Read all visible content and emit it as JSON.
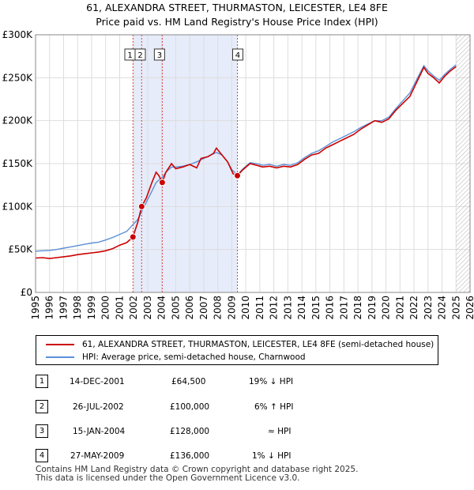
{
  "title_line1": "61, ALEXANDRA STREET, THURMASTON, LEICESTER, LE4 8FE",
  "title_line2": "Price paid vs. HM Land Registry's House Price Index (HPI)",
  "chart_data": {
    "type": "line",
    "title": "Price paid vs. HM Land Registry's House Price Index (HPI)",
    "xlabel": "",
    "ylabel": "",
    "xlim": [
      1995,
      2026
    ],
    "ylim": [
      0,
      300000
    ],
    "x_ticks": [
      "1995",
      "1996",
      "1997",
      "1998",
      "1999",
      "2000",
      "2001",
      "2002",
      "2003",
      "2004",
      "2005",
      "2006",
      "2007",
      "2008",
      "2009",
      "2010",
      "2011",
      "2012",
      "2013",
      "2014",
      "2015",
      "2016",
      "2017",
      "2018",
      "2019",
      "2020",
      "2021",
      "2022",
      "2023",
      "2024",
      "2025",
      "2026"
    ],
    "y_ticks": [
      {
        "value": 0,
        "label": "£0"
      },
      {
        "value": 50000,
        "label": "£50K"
      },
      {
        "value": 100000,
        "label": "£100K"
      },
      {
        "value": 150000,
        "label": "£150K"
      },
      {
        "value": 200000,
        "label": "£200K"
      },
      {
        "value": 250000,
        "label": "£250K"
      },
      {
        "value": 300000,
        "label": "£300K"
      }
    ],
    "series": [
      {
        "name": "61, ALEXANDRA STREET, THURMASTON, LEICESTER, LE4 8FE (semi-detached house)",
        "color": "#cc0000",
        "points": [
          [
            1995.0,
            40000
          ],
          [
            1995.5,
            40500
          ],
          [
            1996.0,
            39500
          ],
          [
            1996.5,
            40500
          ],
          [
            1997.0,
            41500
          ],
          [
            1997.5,
            42500
          ],
          [
            1998.0,
            44000
          ],
          [
            1998.5,
            45000
          ],
          [
            1999.0,
            46000
          ],
          [
            1999.5,
            47000
          ],
          [
            2000.0,
            48500
          ],
          [
            2000.5,
            51000
          ],
          [
            2001.0,
            55000
          ],
          [
            2001.5,
            58000
          ],
          [
            2001.95,
            64500
          ],
          [
            2002.3,
            82000
          ],
          [
            2002.57,
            100000
          ],
          [
            2002.9,
            110000
          ],
          [
            2003.3,
            128000
          ],
          [
            2003.6,
            140000
          ],
          [
            2003.8,
            136000
          ],
          [
            2004.04,
            128000
          ],
          [
            2004.3,
            140000
          ],
          [
            2004.7,
            150000
          ],
          [
            2005.0,
            144000
          ],
          [
            2005.5,
            146000
          ],
          [
            2006.0,
            149000
          ],
          [
            2006.5,
            145000
          ],
          [
            2006.8,
            156000
          ],
          [
            2007.3,
            158000
          ],
          [
            2007.7,
            162000
          ],
          [
            2007.9,
            168000
          ],
          [
            2008.3,
            160000
          ],
          [
            2008.7,
            152000
          ],
          [
            2009.1,
            138000
          ],
          [
            2009.4,
            136000
          ],
          [
            2009.8,
            143000
          ],
          [
            2010.3,
            150000
          ],
          [
            2010.8,
            148000
          ],
          [
            2011.2,
            146000
          ],
          [
            2011.7,
            147000
          ],
          [
            2012.2,
            145000
          ],
          [
            2012.7,
            147000
          ],
          [
            2013.2,
            146000
          ],
          [
            2013.7,
            149000
          ],
          [
            2014.2,
            155000
          ],
          [
            2014.7,
            160000
          ],
          [
            2015.2,
            162000
          ],
          [
            2015.7,
            168000
          ],
          [
            2016.2,
            172000
          ],
          [
            2016.7,
            176000
          ],
          [
            2017.2,
            180000
          ],
          [
            2017.7,
            184000
          ],
          [
            2018.2,
            190000
          ],
          [
            2018.7,
            195000
          ],
          [
            2019.2,
            200000
          ],
          [
            2019.7,
            198000
          ],
          [
            2020.2,
            202000
          ],
          [
            2020.7,
            212000
          ],
          [
            2021.2,
            220000
          ],
          [
            2021.7,
            228000
          ],
          [
            2022.2,
            245000
          ],
          [
            2022.7,
            262000
          ],
          [
            2023.0,
            255000
          ],
          [
            2023.4,
            250000
          ],
          [
            2023.8,
            244000
          ],
          [
            2024.2,
            252000
          ],
          [
            2024.6,
            258000
          ],
          [
            2025.0,
            263000
          ]
        ]
      },
      {
        "name": "HPI: Average price, semi-detached house, Charnwood",
        "color": "#5b8fd6",
        "points": [
          [
            1995.0,
            48000
          ],
          [
            1995.5,
            48500
          ],
          [
            1996.0,
            49000
          ],
          [
            1996.5,
            50000
          ],
          [
            1997.0,
            51500
          ],
          [
            1997.5,
            53000
          ],
          [
            1998.0,
            54500
          ],
          [
            1998.5,
            56000
          ],
          [
            1999.0,
            57500
          ],
          [
            1999.5,
            58500
          ],
          [
            2000.0,
            61000
          ],
          [
            2000.5,
            64000
          ],
          [
            2001.0,
            67500
          ],
          [
            2001.5,
            71000
          ],
          [
            2001.95,
            79000
          ],
          [
            2002.3,
            85000
          ],
          [
            2002.57,
            94000
          ],
          [
            2002.9,
            105000
          ],
          [
            2003.3,
            118000
          ],
          [
            2003.6,
            128000
          ],
          [
            2004.04,
            134000
          ],
          [
            2004.3,
            140000
          ],
          [
            2004.7,
            146000
          ],
          [
            2005.0,
            146000
          ],
          [
            2005.5,
            147000
          ],
          [
            2006.0,
            149000
          ],
          [
            2006.5,
            152000
          ],
          [
            2007.0,
            156000
          ],
          [
            2007.5,
            160000
          ],
          [
            2007.9,
            163000
          ],
          [
            2008.3,
            160000
          ],
          [
            2008.7,
            152000
          ],
          [
            2009.0,
            143000
          ],
          [
            2009.4,
            137000
          ],
          [
            2009.8,
            144000
          ],
          [
            2010.3,
            151000
          ],
          [
            2010.8,
            150000
          ],
          [
            2011.2,
            148000
          ],
          [
            2011.7,
            149000
          ],
          [
            2012.2,
            147000
          ],
          [
            2012.7,
            149000
          ],
          [
            2013.2,
            148000
          ],
          [
            2013.7,
            151000
          ],
          [
            2014.2,
            157000
          ],
          [
            2014.7,
            162000
          ],
          [
            2015.2,
            165000
          ],
          [
            2015.7,
            170000
          ],
          [
            2016.2,
            175000
          ],
          [
            2016.7,
            179000
          ],
          [
            2017.2,
            183000
          ],
          [
            2017.7,
            187000
          ],
          [
            2018.2,
            192000
          ],
          [
            2018.7,
            196000
          ],
          [
            2019.2,
            200000
          ],
          [
            2019.7,
            200000
          ],
          [
            2020.2,
            204000
          ],
          [
            2020.7,
            214000
          ],
          [
            2021.2,
            223000
          ],
          [
            2021.7,
            232000
          ],
          [
            2022.2,
            248000
          ],
          [
            2022.7,
            264000
          ],
          [
            2023.0,
            258000
          ],
          [
            2023.4,
            252000
          ],
          [
            2023.8,
            247000
          ],
          [
            2024.2,
            254000
          ],
          [
            2024.6,
            260000
          ],
          [
            2025.0,
            265000
          ]
        ]
      }
    ],
    "sale_markers": [
      {
        "n": "1",
        "x": 2001.95,
        "price": 64500
      },
      {
        "n": "2",
        "x": 2002.57,
        "price": 100000
      },
      {
        "n": "3",
        "x": 2004.04,
        "price": 128000
      },
      {
        "n": "4",
        "x": 2009.4,
        "price": 136000
      }
    ],
    "shaded_spans": [
      [
        2002.0,
        2009.4
      ]
    ],
    "hatched_from": 2025.0
  },
  "legend": {
    "property_label": "61, ALEXANDRA STREET, THURMASTON, LEICESTER, LE4 8FE (semi-detached house)",
    "hpi_label": "HPI: Average price, semi-detached house, Charnwood",
    "property_color": "#cc0000",
    "hpi_color": "#5b8fd6"
  },
  "transactions": [
    {
      "num": "1",
      "date": "14-DEC-2001",
      "price": "£64,500",
      "hpi": "19% ↓ HPI"
    },
    {
      "num": "2",
      "date": "26-JUL-2002",
      "price": "£100,000",
      "hpi": "6% ↑ HPI"
    },
    {
      "num": "3",
      "date": "15-JAN-2004",
      "price": "£128,000",
      "hpi": "≈ HPI"
    },
    {
      "num": "4",
      "date": "27-MAY-2009",
      "price": "£136,000",
      "hpi": "1% ↓ HPI"
    }
  ],
  "footer_line1": "Contains HM Land Registry data © Crown copyright and database right 2025.",
  "footer_line2": "This data is licensed under the Open Government Licence v3.0."
}
